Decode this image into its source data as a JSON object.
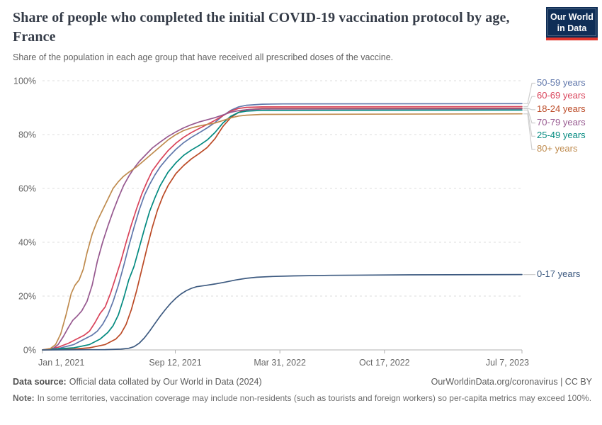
{
  "header": {
    "title": "Share of people who completed the initial COVID-19 vaccination protocol by age, France",
    "subtitle": "Share of the population in each age group that have received all prescribed doses of the vaccine.",
    "logo": {
      "line1": "Our World",
      "line2": "in Data",
      "bg_color": "#0f2e57",
      "stripe_color": "#e0352c"
    }
  },
  "footer": {
    "datasource_label": "Data source:",
    "datasource_text": "Official data collated by Our World in Data (2024)",
    "link_text": "OurWorldinData.org/coronavirus | CC BY",
    "note_label": "Note:",
    "note_text": "In some territories, vaccination coverage may include non-residents (such as tourists and foreign workers) so per-capita metrics may exceed 100%."
  },
  "chart_data": {
    "type": "line",
    "title": "Share of people who completed the initial COVID-19 vaccination protocol by age, France",
    "xlabel": "",
    "ylabel": "",
    "x_unit": "days since Jan 1, 2021",
    "x_range": [
      0,
      917
    ],
    "y_range": [
      0,
      100
    ],
    "grid": "horizontal-dashed",
    "legend_position": "right",
    "axis_color": "#b0b0b0",
    "gridline_color": "#dcdcdc",
    "tick_label_color": "#666666",
    "connector_color": "#cfcfcf",
    "y_ticks": [
      {
        "label": "0%",
        "value": 0
      },
      {
        "label": "20%",
        "value": 20
      },
      {
        "label": "40%",
        "value": 40
      },
      {
        "label": "60%",
        "value": 60
      },
      {
        "label": "80%",
        "value": 80
      },
      {
        "label": "100%",
        "value": 100
      }
    ],
    "x_ticks": [
      {
        "label": "Jan 1, 2021",
        "day": 0
      },
      {
        "label": "Sep 12, 2021",
        "day": 254
      },
      {
        "label": "Mar 31, 2022",
        "day": 454
      },
      {
        "label": "Oct 17, 2022",
        "day": 654
      },
      {
        "label": "Jul 7, 2023",
        "day": 917
      }
    ],
    "series": [
      {
        "name": "50-59 years",
        "color": "#6077ab",
        "final_value_pct": 91.5,
        "points": [
          [
            0,
            0
          ],
          [
            30,
            0.5
          ],
          [
            60,
            2
          ],
          [
            80,
            4
          ],
          [
            95,
            5.5
          ],
          [
            105,
            7
          ],
          [
            115,
            9.5
          ],
          [
            125,
            13
          ],
          [
            135,
            18
          ],
          [
            145,
            24
          ],
          [
            155,
            31
          ],
          [
            165,
            38.5
          ],
          [
            175,
            45.5
          ],
          [
            185,
            52
          ],
          [
            195,
            57.5
          ],
          [
            205,
            61.5
          ],
          [
            215,
            65
          ],
          [
            225,
            68
          ],
          [
            240,
            71.5
          ],
          [
            255,
            74.5
          ],
          [
            270,
            77
          ],
          [
            285,
            79
          ],
          [
            300,
            80.7
          ],
          [
            315,
            82.5
          ],
          [
            330,
            84.5
          ],
          [
            345,
            87
          ],
          [
            360,
            89
          ],
          [
            375,
            90.3
          ],
          [
            390,
            90.9
          ],
          [
            420,
            91.3
          ],
          [
            460,
            91.4
          ],
          [
            917,
            91.5
          ]
        ]
      },
      {
        "name": "60-69 years",
        "color": "#d9435a",
        "final_value_pct": 90.4,
        "points": [
          [
            0,
            0
          ],
          [
            30,
            1
          ],
          [
            50,
            2.5
          ],
          [
            65,
            4
          ],
          [
            80,
            5.5
          ],
          [
            90,
            7
          ],
          [
            100,
            10
          ],
          [
            110,
            13.5
          ],
          [
            120,
            16
          ],
          [
            130,
            21
          ],
          [
            140,
            27
          ],
          [
            150,
            33
          ],
          [
            160,
            40
          ],
          [
            170,
            46.5
          ],
          [
            180,
            52.5
          ],
          [
            190,
            58
          ],
          [
            200,
            62.5
          ],
          [
            210,
            66.5
          ],
          [
            225,
            70.5
          ],
          [
            240,
            74
          ],
          [
            255,
            76.8
          ],
          [
            270,
            79
          ],
          [
            285,
            80.8
          ],
          [
            300,
            82.3
          ],
          [
            315,
            83.8
          ],
          [
            330,
            85.3
          ],
          [
            345,
            87
          ],
          [
            360,
            88.7
          ],
          [
            375,
            89.7
          ],
          [
            390,
            90.1
          ],
          [
            420,
            90.3
          ],
          [
            917,
            90.4
          ]
        ]
      },
      {
        "name": "18-24 years",
        "color": "#bb4a26",
        "final_value_pct": 89.8,
        "points": [
          [
            0,
            0
          ],
          [
            60,
            0.3
          ],
          [
            90,
            0.8
          ],
          [
            120,
            2
          ],
          [
            140,
            4
          ],
          [
            150,
            6
          ],
          [
            160,
            9.5
          ],
          [
            170,
            15
          ],
          [
            180,
            22
          ],
          [
            190,
            30
          ],
          [
            200,
            38
          ],
          [
            210,
            45.5
          ],
          [
            220,
            52
          ],
          [
            230,
            57
          ],
          [
            240,
            61
          ],
          [
            255,
            65.5
          ],
          [
            270,
            68.5
          ],
          [
            285,
            71
          ],
          [
            300,
            73
          ],
          [
            315,
            75.2
          ],
          [
            330,
            78.5
          ],
          [
            345,
            83
          ],
          [
            360,
            86.3
          ],
          [
            375,
            88.3
          ],
          [
            390,
            89.2
          ],
          [
            420,
            89.7
          ],
          [
            917,
            89.8
          ]
        ]
      },
      {
        "name": "70-79 years",
        "color": "#96588f",
        "final_value_pct": 89.6,
        "points": [
          [
            0,
            0
          ],
          [
            20,
            0.5
          ],
          [
            30,
            2
          ],
          [
            40,
            5
          ],
          [
            50,
            8.5
          ],
          [
            58,
            11
          ],
          [
            66,
            12.5
          ],
          [
            75,
            14.5
          ],
          [
            85,
            18
          ],
          [
            95,
            24
          ],
          [
            105,
            33
          ],
          [
            115,
            40
          ],
          [
            125,
            46
          ],
          [
            135,
            51.5
          ],
          [
            145,
            56.5
          ],
          [
            155,
            61
          ],
          [
            165,
            64.5
          ],
          [
            175,
            67.5
          ],
          [
            185,
            70
          ],
          [
            195,
            72
          ],
          [
            210,
            75
          ],
          [
            225,
            77.2
          ],
          [
            240,
            79.3
          ],
          [
            255,
            81
          ],
          [
            270,
            82.5
          ],
          [
            285,
            83.7
          ],
          [
            300,
            84.7
          ],
          [
            315,
            85.5
          ],
          [
            330,
            86.3
          ],
          [
            345,
            87.3
          ],
          [
            360,
            88.3
          ],
          [
            375,
            88.9
          ],
          [
            390,
            89.2
          ],
          [
            420,
            89.5
          ],
          [
            917,
            89.6
          ]
        ]
      },
      {
        "name": "25-49 years",
        "color": "#038a80",
        "final_value_pct": 89.1,
        "points": [
          [
            0,
            0
          ],
          [
            60,
            0.8
          ],
          [
            90,
            2
          ],
          [
            110,
            4
          ],
          [
            125,
            6.5
          ],
          [
            135,
            9
          ],
          [
            145,
            13
          ],
          [
            155,
            19
          ],
          [
            165,
            26
          ],
          [
            175,
            31
          ],
          [
            185,
            38
          ],
          [
            195,
            45
          ],
          [
            205,
            51.5
          ],
          [
            215,
            56.5
          ],
          [
            225,
            61
          ],
          [
            240,
            66
          ],
          [
            255,
            69.5
          ],
          [
            270,
            72.3
          ],
          [
            285,
            74.3
          ],
          [
            300,
            76
          ],
          [
            315,
            78
          ],
          [
            330,
            80.8
          ],
          [
            345,
            84.3
          ],
          [
            360,
            86.8
          ],
          [
            375,
            88.2
          ],
          [
            390,
            88.7
          ],
          [
            420,
            89
          ],
          [
            917,
            89.1
          ]
        ]
      },
      {
        "name": "80+ years",
        "color": "#bf8b4e",
        "final_value_pct": 87.7,
        "points": [
          [
            0,
            0
          ],
          [
            15,
            0.5
          ],
          [
            25,
            2
          ],
          [
            35,
            6
          ],
          [
            45,
            13
          ],
          [
            50,
            17
          ],
          [
            55,
            21
          ],
          [
            62,
            24
          ],
          [
            70,
            26
          ],
          [
            78,
            30
          ],
          [
            85,
            36
          ],
          [
            95,
            43
          ],
          [
            105,
            48
          ],
          [
            115,
            52
          ],
          [
            125,
            56
          ],
          [
            135,
            60
          ],
          [
            145,
            62.5
          ],
          [
            155,
            64.5
          ],
          [
            165,
            66
          ],
          [
            180,
            68
          ],
          [
            195,
            70.5
          ],
          [
            210,
            73
          ],
          [
            225,
            75.5
          ],
          [
            240,
            78
          ],
          [
            255,
            80
          ],
          [
            270,
            81.5
          ],
          [
            285,
            82.5
          ],
          [
            300,
            83.2
          ],
          [
            315,
            83.8
          ],
          [
            330,
            84.3
          ],
          [
            345,
            85.2
          ],
          [
            360,
            86.2
          ],
          [
            375,
            86.9
          ],
          [
            390,
            87.2
          ],
          [
            420,
            87.5
          ],
          [
            917,
            87.7
          ]
        ]
      },
      {
        "name": "0-17 years",
        "color": "#3d5a80",
        "final_value_pct": 28.0,
        "points": [
          [
            0,
            0
          ],
          [
            120,
            0.1
          ],
          [
            150,
            0.3
          ],
          [
            165,
            0.6
          ],
          [
            175,
            1.2
          ],
          [
            185,
            2.5
          ],
          [
            195,
            4.5
          ],
          [
            205,
            7
          ],
          [
            215,
            9.8
          ],
          [
            225,
            12.5
          ],
          [
            235,
            15
          ],
          [
            245,
            17.3
          ],
          [
            255,
            19.2
          ],
          [
            265,
            20.8
          ],
          [
            275,
            22
          ],
          [
            285,
            22.9
          ],
          [
            295,
            23.5
          ],
          [
            310,
            23.9
          ],
          [
            330,
            24.5
          ],
          [
            350,
            25.2
          ],
          [
            370,
            26
          ],
          [
            390,
            26.6
          ],
          [
            410,
            27
          ],
          [
            440,
            27.3
          ],
          [
            480,
            27.5
          ],
          [
            550,
            27.7
          ],
          [
            700,
            27.9
          ],
          [
            917,
            28
          ]
        ]
      }
    ]
  }
}
